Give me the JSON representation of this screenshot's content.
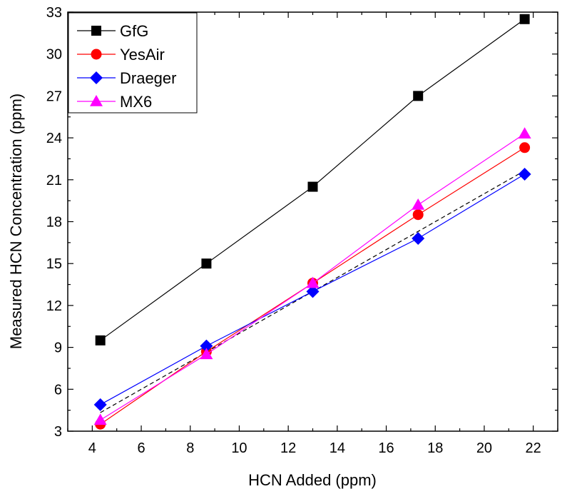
{
  "chart_data": {
    "type": "line",
    "xlabel": "HCN Added (ppm)",
    "ylabel": "Measured HCN Concentration (ppm)",
    "xlim": [
      3,
      23
    ],
    "ylim": [
      3,
      33
    ],
    "xticks": [
      4,
      6,
      8,
      10,
      12,
      14,
      16,
      18,
      20,
      22
    ],
    "yticks": [
      3,
      6,
      9,
      12,
      15,
      18,
      21,
      24,
      27,
      30,
      33
    ],
    "legend_position": "top-left",
    "series": [
      {
        "name": "GfG",
        "color": "#000000",
        "marker": "square",
        "x": [
          4.33,
          8.66,
          13.0,
          17.3,
          21.65
        ],
        "y": [
          9.5,
          15.0,
          20.5,
          27.0,
          32.5
        ]
      },
      {
        "name": "YesAir",
        "color": "#ff0000",
        "marker": "circle",
        "x": [
          4.33,
          8.66,
          13.0,
          17.3,
          21.65
        ],
        "y": [
          3.5,
          8.7,
          13.6,
          18.5,
          23.3
        ]
      },
      {
        "name": "Draeger",
        "color": "#0000ff",
        "marker": "diamond",
        "x": [
          4.33,
          8.66,
          13.0,
          17.3,
          21.65
        ],
        "y": [
          4.9,
          9.1,
          13.0,
          16.8,
          21.4
        ]
      },
      {
        "name": "MX6",
        "color": "#ff00ff",
        "marker": "triangle",
        "x": [
          4.33,
          8.66,
          13.0,
          17.3,
          21.65
        ],
        "y": [
          3.8,
          8.5,
          13.6,
          19.2,
          24.3
        ]
      }
    ],
    "reference_line": {
      "color": "#000000",
      "style": "dashed",
      "x": [
        4.33,
        21.65
      ],
      "y": [
        4.33,
        21.65
      ]
    }
  }
}
